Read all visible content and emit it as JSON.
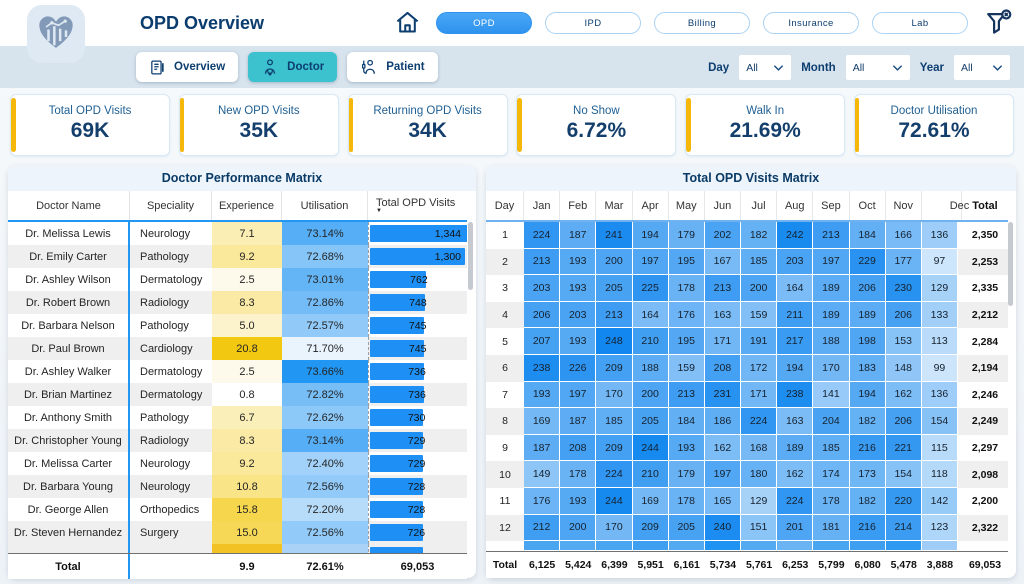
{
  "header": {
    "title": "OPD Overview",
    "nav_pills": [
      {
        "label": "OPD",
        "active": true
      },
      {
        "label": "IPD",
        "active": false
      },
      {
        "label": "Billing",
        "active": false
      },
      {
        "label": "Insurance",
        "active": false
      },
      {
        "label": "Lab",
        "active": false
      }
    ]
  },
  "toolbar": {
    "tabs": [
      {
        "label": "Overview",
        "icon": "clipboard-icon",
        "active": false
      },
      {
        "label": "Doctor",
        "icon": "doctor-icon",
        "active": true
      },
      {
        "label": "Patient",
        "icon": "patient-icon",
        "active": false
      }
    ],
    "filters": [
      {
        "label": "Day",
        "value": "All"
      },
      {
        "label": "Month",
        "value": "All"
      },
      {
        "label": "Year",
        "value": "All"
      }
    ]
  },
  "kpis": [
    {
      "label": "Total OPD Visits",
      "value": "69K"
    },
    {
      "label": "New OPD Visits",
      "value": "35K"
    },
    {
      "label": "Returning OPD Visits",
      "value": "34K"
    },
    {
      "label": "No Show",
      "value": "6.72%"
    },
    {
      "label": "Walk In",
      "value": "21.69%"
    },
    {
      "label": "Doctor Utilisation",
      "value": "72.61%"
    }
  ],
  "doctor_table": {
    "title": "Doctor Performance Matrix",
    "columns": [
      "Doctor Name",
      "Speciality",
      "Experience",
      "Utilisation",
      "Total OPD Visits"
    ],
    "sorted_column": "Total OPD Visits",
    "experience_scale": {
      "min": 0.8,
      "max": 20.8
    },
    "utilisation_scale": {
      "min": 71.7,
      "max": 73.66
    },
    "bar_max": 1344,
    "rows": [
      {
        "name": "Dr. Melissa Lewis",
        "speciality": "Neurology",
        "experience": "7.1",
        "utilisation": "73.14%",
        "visits": "1,344",
        "visits_num": 1344
      },
      {
        "name": "Dr. Emily Carter",
        "speciality": "Pathology",
        "experience": "9.2",
        "utilisation": "72.68%",
        "visits": "1,300",
        "visits_num": 1300
      },
      {
        "name": "Dr. Ashley Wilson",
        "speciality": "Dermatology",
        "experience": "2.5",
        "utilisation": "73.01%",
        "visits": "762",
        "visits_num": 762
      },
      {
        "name": "Dr. Robert Brown",
        "speciality": "Radiology",
        "experience": "8.3",
        "utilisation": "72.86%",
        "visits": "748",
        "visits_num": 748
      },
      {
        "name": "Dr. Barbara Nelson",
        "speciality": "Pathology",
        "experience": "5.0",
        "utilisation": "72.57%",
        "visits": "745",
        "visits_num": 745
      },
      {
        "name": "Dr. Paul Brown",
        "speciality": "Cardiology",
        "experience": "20.8",
        "utilisation": "71.70%",
        "visits": "745",
        "visits_num": 745
      },
      {
        "name": "Dr. Ashley Walker",
        "speciality": "Dermatology",
        "experience": "2.5",
        "utilisation": "73.66%",
        "visits": "736",
        "visits_num": 736
      },
      {
        "name": "Dr. Brian Martinez",
        "speciality": "Dermatology",
        "experience": "0.8",
        "utilisation": "72.82%",
        "visits": "736",
        "visits_num": 736
      },
      {
        "name": "Dr. Anthony Smith",
        "speciality": "Pathology",
        "experience": "6.7",
        "utilisation": "72.62%",
        "visits": "730",
        "visits_num": 730
      },
      {
        "name": "Dr. Christopher Young",
        "speciality": "Radiology",
        "experience": "8.3",
        "utilisation": "73.14%",
        "visits": "729",
        "visits_num": 729
      },
      {
        "name": "Dr. Melissa Carter",
        "speciality": "Neurology",
        "experience": "9.2",
        "utilisation": "72.40%",
        "visits": "729",
        "visits_num": 729
      },
      {
        "name": "Dr. Barbara Young",
        "speciality": "Neurology",
        "experience": "10.8",
        "utilisation": "72.56%",
        "visits": "728",
        "visits_num": 728
      },
      {
        "name": "Dr. George Allen",
        "speciality": "Orthopedics",
        "experience": "15.8",
        "utilisation": "72.20%",
        "visits": "728",
        "visits_num": 728
      },
      {
        "name": "Dr. Steven Hernandez",
        "speciality": "Surgery",
        "experience": "15.0",
        "utilisation": "72.56%",
        "visits": "726",
        "visits_num": 726
      }
    ],
    "clipped_row": {
      "experience_color": "#F2C124",
      "utilisation_color": "#A9D2F6",
      "bar_pct": 54
    },
    "total": {
      "label": "Total",
      "experience": "9.9",
      "utilisation": "72.61%",
      "visits": "69,053"
    }
  },
  "visits_matrix": {
    "title": "Total OPD Visits Matrix",
    "columns": [
      "Day",
      "Jan",
      "Feb",
      "Mar",
      "Apr",
      "May",
      "Jun",
      "Jul",
      "Aug",
      "Sep",
      "Oct",
      "Nov",
      "Dec",
      "Total"
    ],
    "heat_scale": {
      "min": 97,
      "max": 248
    },
    "rows": [
      {
        "day": "1",
        "values": [
          224,
          187,
          241,
          194,
          179,
          202,
          182,
          242,
          213,
          184,
          166,
          136
        ],
        "total": "2,350"
      },
      {
        "day": "2",
        "values": [
          213,
          193,
          200,
          197,
          195,
          167,
          185,
          203,
          197,
          229,
          177,
          97
        ],
        "total": "2,253"
      },
      {
        "day": "3",
        "values": [
          203,
          193,
          205,
          225,
          178,
          213,
          200,
          164,
          189,
          206,
          230,
          129
        ],
        "total": "2,335"
      },
      {
        "day": "4",
        "values": [
          206,
          203,
          213,
          164,
          176,
          163,
          159,
          211,
          189,
          189,
          206,
          133
        ],
        "total": "2,212"
      },
      {
        "day": "5",
        "values": [
          207,
          193,
          248,
          210,
          195,
          171,
          191,
          217,
          188,
          198,
          153,
          113
        ],
        "total": "2,284"
      },
      {
        "day": "6",
        "values": [
          238,
          226,
          209,
          188,
          159,
          208,
          172,
          194,
          170,
          183,
          148,
          99
        ],
        "total": "2,194"
      },
      {
        "day": "7",
        "values": [
          193,
          197,
          170,
          200,
          213,
          231,
          171,
          238,
          141,
          194,
          162,
          136
        ],
        "total": "2,246"
      },
      {
        "day": "8",
        "values": [
          169,
          187,
          185,
          205,
          184,
          186,
          224,
          163,
          204,
          182,
          206,
          154
        ],
        "total": "2,249"
      },
      {
        "day": "9",
        "values": [
          187,
          208,
          209,
          244,
          193,
          162,
          168,
          189,
          185,
          216,
          221,
          115
        ],
        "total": "2,297"
      },
      {
        "day": "10",
        "values": [
          149,
          178,
          224,
          210,
          179,
          197,
          180,
          162,
          174,
          173,
          154,
          118
        ],
        "total": "2,098"
      },
      {
        "day": "11",
        "values": [
          176,
          193,
          244,
          169,
          178,
          165,
          129,
          224,
          178,
          182,
          220,
          142
        ],
        "total": "2,200"
      },
      {
        "day": "12",
        "values": [
          212,
          200,
          170,
          209,
          205,
          240,
          151,
          201,
          181,
          216,
          214,
          123
        ],
        "total": "2,322"
      }
    ],
    "clipped_row_colors": [
      "#4AA5F0",
      "#54AAF1",
      "#4AA5F0",
      "#3E9FF0",
      "#54AAF1",
      "#1E93F2",
      "#54AAF1",
      "#6AB4F3",
      "#4AA5F0",
      "#3E9FF0",
      "#2D99F1",
      "#9FCDF7"
    ],
    "total_row": {
      "label": "Total",
      "values": [
        "6,125",
        "5,424",
        "6,399",
        "5,951",
        "6,161",
        "5,734",
        "5,761",
        "6,253",
        "5,799",
        "6,080",
        "5,478",
        "3,888"
      ],
      "grand_total": "69,053"
    }
  },
  "colors": {
    "accent_blue": "#2196F3",
    "pill_active_blue": "#3D9EF3",
    "tab_active_teal": "#3BC2CE",
    "kpi_accent_yellow": "#F5B70A",
    "data_bar_blue": "#1E90F5",
    "heat_min": "#CEE6FB",
    "heat_max": "#1287EF",
    "experience_min": "#FFFFFF",
    "experience_max": "#F2C811",
    "utilisation_min": "#EAF4FD",
    "utilisation_max": "#2196F3"
  }
}
